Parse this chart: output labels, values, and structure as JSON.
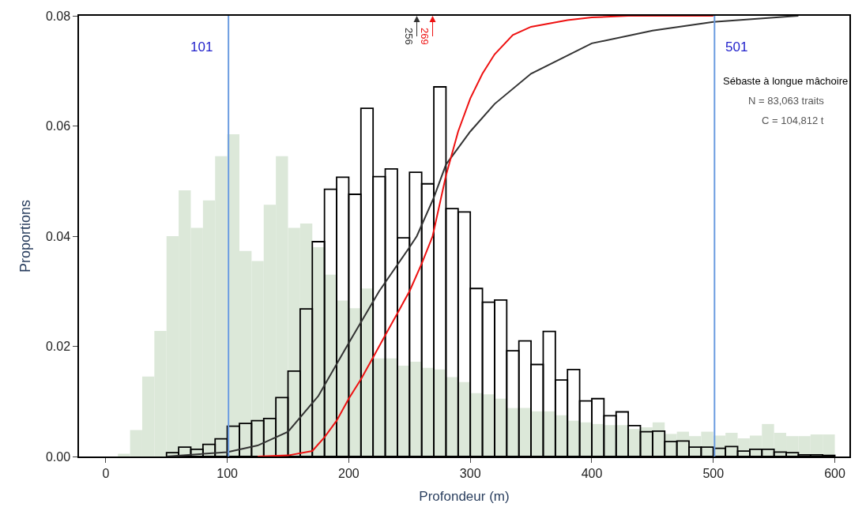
{
  "chart_data": {
    "type": "histogram",
    "xlabel": "Profondeur (m)",
    "ylabel": "Proportions",
    "bins": [
      0,
      10,
      20,
      30,
      40,
      50,
      60,
      70,
      80,
      90,
      100,
      110,
      120,
      130,
      140,
      150,
      160,
      170,
      180,
      190,
      200,
      210,
      220,
      230,
      240,
      250,
      260,
      270,
      280,
      290,
      300,
      310,
      320,
      330,
      340,
      350,
      360,
      370,
      380,
      390,
      400,
      410,
      420,
      430,
      440,
      450,
      460,
      470,
      480,
      490,
      500,
      510,
      520,
      530,
      540,
      550,
      560,
      570,
      580,
      590,
      600
    ],
    "xlim": [
      -22,
      612
    ],
    "xticks": [
      0,
      100,
      200,
      300,
      400,
      500,
      600
    ],
    "ylim": [
      0,
      0.08
    ],
    "yticks": [
      {
        "value": 0,
        "label": "0.00"
      },
      {
        "value": 0.02,
        "label": "0.02"
      },
      {
        "value": 0.04,
        "label": "0.04"
      },
      {
        "value": 0.06,
        "label": "0.06"
      },
      {
        "value": 0.08,
        "label": "0.08"
      }
    ],
    "series": [
      {
        "color": "#dce8d9",
        "values": [
          0.0,
          0.0005,
          0.0048,
          0.0145,
          0.0228,
          0.04,
          0.0483,
          0.0415,
          0.0465,
          0.0545,
          0.0585,
          0.0373,
          0.0355,
          0.0457,
          0.0545,
          0.0415,
          0.0423,
          0.038,
          0.033,
          0.0283,
          0.0269,
          0.0305,
          0.0178,
          0.0178,
          0.0165,
          0.0172,
          0.0161,
          0.0158,
          0.0144,
          0.0135,
          0.0115,
          0.0113,
          0.0105,
          0.0088,
          0.0088,
          0.0082,
          0.0082,
          0.0075,
          0.0065,
          0.0062,
          0.0059,
          0.0057,
          0.0057,
          0.005,
          0.0053,
          0.0062,
          0.0041,
          0.0045,
          0.0037,
          0.0045,
          0.0038,
          0.0043,
          0.0033,
          0.0038,
          0.0059,
          0.0043,
          0.0037,
          0.0037,
          0.004,
          0.004
        ]
      },
      {
        "color": "#000000",
        "values": [
          null,
          null,
          null,
          null,
          null,
          0.0007,
          0.0017,
          0.0013,
          0.0022,
          0.0032,
          0.0055,
          0.006,
          0.0065,
          0.0069,
          0.0107,
          0.0155,
          0.0268,
          0.039,
          0.0485,
          0.0507,
          0.0476,
          0.0632,
          0.0508,
          0.0522,
          0.0397,
          0.0516,
          0.0495,
          0.0671,
          0.045,
          0.0444,
          0.0305,
          0.028,
          0.0284,
          0.0192,
          0.021,
          0.0167,
          0.0227,
          0.0139,
          0.0158,
          0.0101,
          0.0105,
          0.0074,
          0.0081,
          0.0056,
          0.0045,
          0.0046,
          0.0027,
          0.0028,
          0.0017,
          0.0017,
          0.0015,
          0.0018,
          0.001,
          0.0013,
          0.0013,
          0.0008,
          0.0007,
          0.0003,
          0.0003,
          0.0002
        ]
      },
      {
        "type": "line",
        "color": "#333333",
        "x": [
          50,
          100,
          125,
          150,
          175,
          200,
          225,
          250,
          256,
          270,
          280,
          290,
          300,
          320,
          350,
          400,
          450,
          500,
          570
        ],
        "values": [
          0,
          0.0008,
          0.002,
          0.0045,
          0.011,
          0.0206,
          0.03,
          0.038,
          0.04,
          0.047,
          0.053,
          0.056,
          0.059,
          0.064,
          0.0695,
          0.075,
          0.0773,
          0.0789,
          0.08
        ]
      },
      {
        "type": "line",
        "color": "#ee1111",
        "x": [
          125,
          150,
          170,
          180,
          190,
          200,
          210,
          220,
          230,
          240,
          250,
          260,
          269,
          280,
          290,
          300,
          310,
          320,
          335,
          350,
          380,
          400,
          430,
          500
        ],
        "values": [
          0,
          0.0002,
          0.001,
          0.0035,
          0.0065,
          0.0105,
          0.014,
          0.018,
          0.022,
          0.026,
          0.03,
          0.035,
          0.04,
          0.051,
          0.059,
          0.065,
          0.0695,
          0.073,
          0.0765,
          0.078,
          0.0792,
          0.0797,
          0.08,
          0.08
        ]
      }
    ],
    "ref_lines": [
      {
        "axis": "x",
        "value": 101,
        "label": "101",
        "color": "#6a9be0"
      },
      {
        "axis": "x",
        "value": 501,
        "label": "501",
        "color": "#6a9be0"
      }
    ],
    "annotations": [
      "256",
      "269",
      "Sébaste à longue mâchoire",
      "N = 83,063 traits",
      "C = 104,812 t"
    ]
  }
}
